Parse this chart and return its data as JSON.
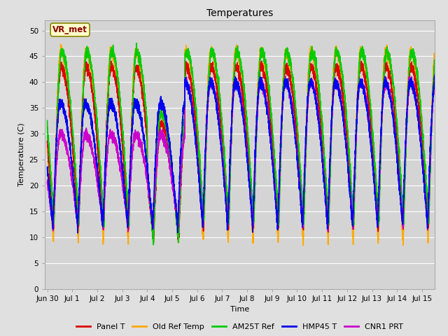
{
  "title": "Temperatures",
  "xlabel": "Time",
  "ylabel": "Temperature (C)",
  "ylim": [
    0,
    52
  ],
  "yticks": [
    0,
    5,
    10,
    15,
    20,
    25,
    30,
    35,
    40,
    45,
    50
  ],
  "annotation_text": "VR_met",
  "series": {
    "Panel T": {
      "color": "#dd0000",
      "lw": 1.2
    },
    "Old Ref Temp": {
      "color": "#ffaa00",
      "lw": 1.2
    },
    "AM25T Ref": {
      "color": "#00cc00",
      "lw": 1.2
    },
    "HMP45 T": {
      "color": "#0000ee",
      "lw": 1.2
    },
    "CNR1 PRT": {
      "color": "#cc00cc",
      "lw": 1.2
    }
  },
  "fig_bg": "#e0e0e0",
  "plot_bg": "#d4d4d4",
  "grid_color": "#ffffff",
  "start_day": -0.1,
  "end_day": 15.5,
  "n_points": 5000,
  "legend_fontsize": 8,
  "title_fontsize": 10,
  "axis_label_fontsize": 8,
  "tick_fontsize": 7.5
}
